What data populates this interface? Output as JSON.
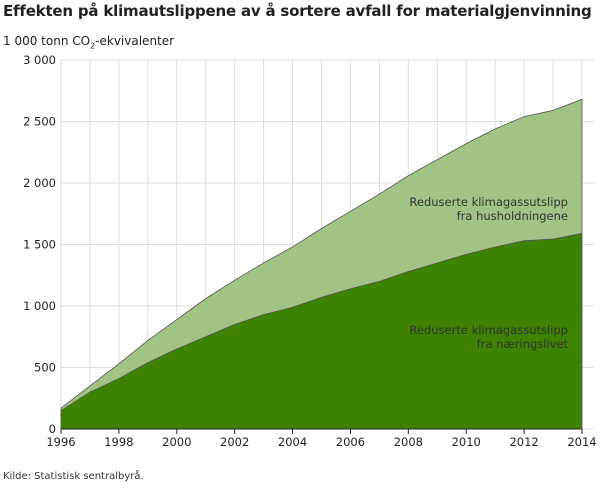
{
  "chart_data": {
    "type": "area",
    "stacked": true,
    "title": "Effekten på klimautslippene av å sortere avfall for materialgjenvinning",
    "ylabel_prefix": "1 000 tonn CO",
    "ylabel_sub": "2",
    "ylabel_suffix": "-ekvivalenter",
    "xlabel": "",
    "x": [
      1996,
      1997,
      1998,
      1999,
      2000,
      2001,
      2002,
      2003,
      2004,
      2005,
      2006,
      2007,
      2008,
      2009,
      2010,
      2011,
      2012,
      2013,
      2014
    ],
    "xticks": [
      "1996",
      "1998",
      "2000",
      "2002",
      "2004",
      "2006",
      "2008",
      "2010",
      "2012",
      "2014"
    ],
    "yticks": [
      "0",
      "500",
      "1 000",
      "1 500",
      "2 000",
      "2 500",
      "3 000"
    ],
    "ylim": [
      0,
      3000
    ],
    "grid": true,
    "series": [
      {
        "name_line1": "Reduserte klimagassutslipp",
        "name_line2": "fra næringslivet",
        "color": "#3d8200",
        "values": [
          150,
          300,
          410,
          540,
          650,
          750,
          850,
          930,
          990,
          1070,
          1140,
          1200,
          1280,
          1350,
          1420,
          1480,
          1530,
          1545,
          1590
        ]
      },
      {
        "name_line1": "Reduserte klimagassutslipp",
        "name_line2": "fra husholdningene",
        "color": "#a1c484",
        "values": [
          20,
          50,
          120,
          180,
          240,
          310,
          360,
          420,
          490,
          560,
          630,
          710,
          780,
          840,
          900,
          960,
          1010,
          1045,
          1090
        ]
      }
    ]
  },
  "source": "Kilde: Statistisk sentralbyrå."
}
